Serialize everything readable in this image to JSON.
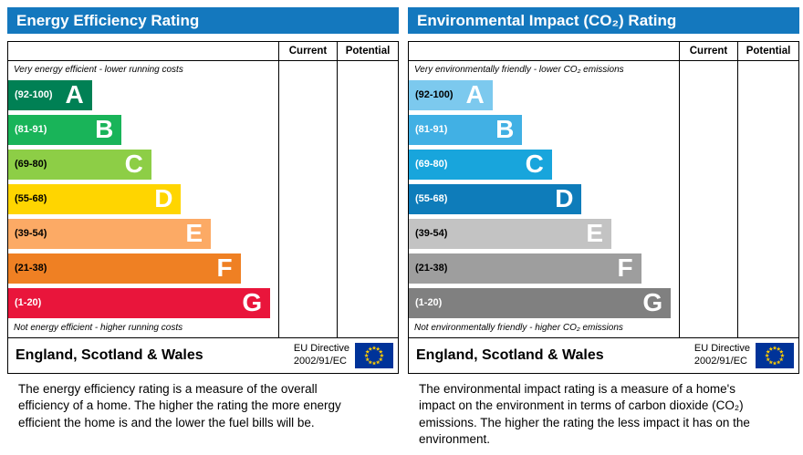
{
  "colors": {
    "header_bg": "#1478be",
    "flag_bg": "#003399",
    "flag_star": "#ffcc00"
  },
  "chart_data": [
    {
      "type": "bar",
      "title": "Energy Efficiency Rating",
      "top_note": "Very energy efficient - lower running costs",
      "bottom_note": "Not energy efficient - higher running costs",
      "columns": {
        "current": "Current",
        "potential": "Potential"
      },
      "categories": [
        "A",
        "B",
        "C",
        "D",
        "E",
        "F",
        "G"
      ],
      "bands": [
        {
          "range": "(92-100)",
          "letter": "A",
          "color": "#008054",
          "range_color": "#ffffff",
          "width_pct": 31
        },
        {
          "range": "(81-91)",
          "letter": "B",
          "color": "#19b459",
          "range_color": "#ffffff",
          "width_pct": 42
        },
        {
          "range": "(69-80)",
          "letter": "C",
          "color": "#8dce46",
          "range_color": "#000000",
          "width_pct": 53
        },
        {
          "range": "(55-68)",
          "letter": "D",
          "color": "#ffd500",
          "range_color": "#000000",
          "width_pct": 64
        },
        {
          "range": "(39-54)",
          "letter": "E",
          "color": "#fcaa65",
          "range_color": "#000000",
          "width_pct": 75
        },
        {
          "range": "(21-38)",
          "letter": "F",
          "color": "#ef8023",
          "range_color": "#000000",
          "width_pct": 86
        },
        {
          "range": "(1-20)",
          "letter": "G",
          "color": "#e9153b",
          "range_color": "#ffffff",
          "width_pct": 97
        }
      ],
      "current": null,
      "potential": null,
      "footer": {
        "region": "England, Scotland & Wales",
        "directive_line1": "EU Directive",
        "directive_line2": "2002/91/EC"
      },
      "description": "The energy efficiency rating is a measure of the overall efficiency of a home. The higher the rating the more energy efficient the home is and the lower the fuel bills will be."
    },
    {
      "type": "bar",
      "title": "Environmental Impact (CO₂) Rating",
      "top_note": "Very environmentally friendly - lower CO₂ emissions",
      "bottom_note": "Not environmentally friendly - higher CO₂ emissions",
      "columns": {
        "current": "Current",
        "potential": "Potential"
      },
      "categories": [
        "A",
        "B",
        "C",
        "D",
        "E",
        "F",
        "G"
      ],
      "bands": [
        {
          "range": "(92-100)",
          "letter": "A",
          "color": "#7cc9ee",
          "range_color": "#000000",
          "width_pct": 31
        },
        {
          "range": "(81-91)",
          "letter": "B",
          "color": "#41b0e4",
          "range_color": "#ffffff",
          "width_pct": 42
        },
        {
          "range": "(69-80)",
          "letter": "C",
          "color": "#18a5dc",
          "range_color": "#ffffff",
          "width_pct": 53
        },
        {
          "range": "(55-68)",
          "letter": "D",
          "color": "#0e7cba",
          "range_color": "#ffffff",
          "width_pct": 64
        },
        {
          "range": "(39-54)",
          "letter": "E",
          "color": "#c3c3c3",
          "range_color": "#000000",
          "width_pct": 75
        },
        {
          "range": "(21-38)",
          "letter": "F",
          "color": "#9e9e9e",
          "range_color": "#000000",
          "width_pct": 86
        },
        {
          "range": "(1-20)",
          "letter": "G",
          "color": "#808080",
          "range_color": "#ffffff",
          "width_pct": 97
        }
      ],
      "current": null,
      "potential": null,
      "footer": {
        "region": "England, Scotland & Wales",
        "directive_line1": "EU Directive",
        "directive_line2": "2002/91/EC"
      },
      "description": "The environmental impact rating is a measure of a home's impact on the environment in terms of carbon dioxide (CO₂) emissions. The higher the rating the less impact it has on the environment."
    }
  ]
}
